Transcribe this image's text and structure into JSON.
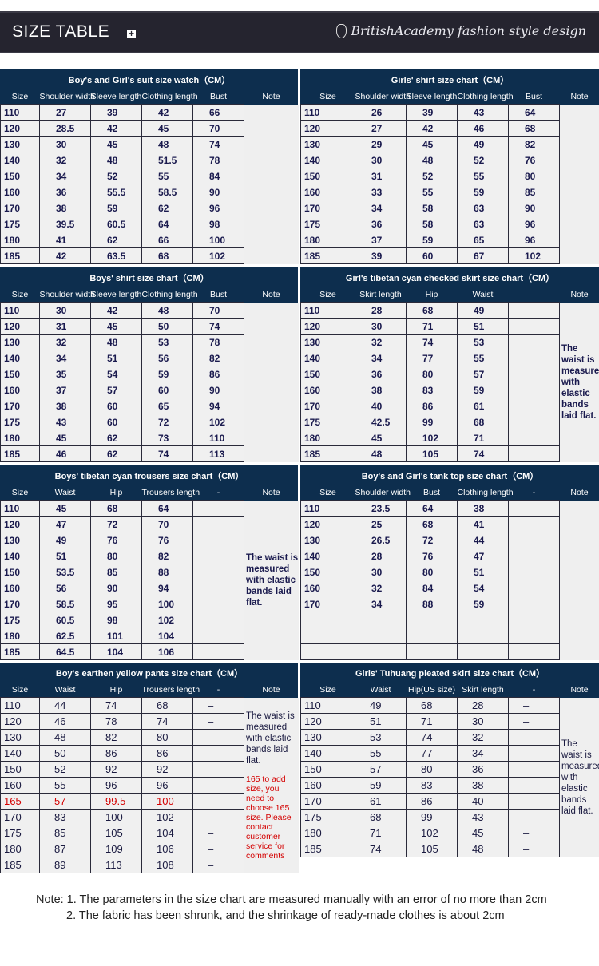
{
  "banner": {
    "title": "SIZE TABLE",
    "plus_icon": "plus-square-icon",
    "brand": "BritishAcademy fashion style design",
    "crest_icon": "crest-icon"
  },
  "colors": {
    "header_bg": "#0d2e4e",
    "cell_bg": "#f0f0f0",
    "text": "#1a1a4e",
    "highlight": "#d40000",
    "banner_bg": "#25242f"
  },
  "tables": [
    {
      "title": "Boy's and Girl's suit size watch（CM）",
      "headers": [
        "Size",
        "Shoulder width",
        "Sleeve length",
        "Clothing length",
        "Bust",
        "Note"
      ],
      "rows": [
        [
          "110",
          "27",
          "39",
          "42",
          "66"
        ],
        [
          "120",
          "28.5",
          "42",
          "45",
          "70"
        ],
        [
          "130",
          "30",
          "45",
          "48",
          "74"
        ],
        [
          "140",
          "32",
          "48",
          "51.5",
          "78"
        ],
        [
          "150",
          "34",
          "52",
          "55",
          "84"
        ],
        [
          "160",
          "36",
          "55.5",
          "58.5",
          "90"
        ],
        [
          "170",
          "38",
          "59",
          "62",
          "96"
        ],
        [
          "175",
          "39.5",
          "60.5",
          "64",
          "98"
        ],
        [
          "180",
          "41",
          "62",
          "66",
          "100"
        ],
        [
          "185",
          "42",
          "63.5",
          "68",
          "102"
        ]
      ],
      "note": ""
    },
    {
      "title": "Girls' shirt size chart（CM）",
      "headers": [
        "Size",
        "Shoulder width",
        "Sleeve length",
        "Clothing length",
        "Bust",
        "Note"
      ],
      "rows": [
        [
          "110",
          "26",
          "39",
          "43",
          "64"
        ],
        [
          "120",
          "27",
          "42",
          "46",
          "68"
        ],
        [
          "130",
          "29",
          "45",
          "49",
          "82"
        ],
        [
          "140",
          "30",
          "48",
          "52",
          "76"
        ],
        [
          "150",
          "31",
          "52",
          "55",
          "80"
        ],
        [
          "160",
          "33",
          "55",
          "59",
          "85"
        ],
        [
          "170",
          "34",
          "58",
          "63",
          "90"
        ],
        [
          "175",
          "36",
          "58",
          "63",
          "96"
        ],
        [
          "180",
          "37",
          "59",
          "65",
          "96"
        ],
        [
          "185",
          "39",
          "60",
          "67",
          "102"
        ]
      ],
      "note": ""
    },
    {
      "title": "Boys' shirt size chart（CM）",
      "headers": [
        "Size",
        "Shoulder width",
        "Sleeve length",
        "Clothing length",
        "Bust",
        "Note"
      ],
      "rows": [
        [
          "110",
          "30",
          "42",
          "48",
          "70"
        ],
        [
          "120",
          "31",
          "45",
          "50",
          "74"
        ],
        [
          "130",
          "32",
          "48",
          "53",
          "78"
        ],
        [
          "140",
          "34",
          "51",
          "56",
          "82"
        ],
        [
          "150",
          "35",
          "54",
          "59",
          "86"
        ],
        [
          "160",
          "37",
          "57",
          "60",
          "90"
        ],
        [
          "170",
          "38",
          "60",
          "65",
          "94"
        ],
        [
          "175",
          "43",
          "60",
          "72",
          "102"
        ],
        [
          "180",
          "45",
          "62",
          "73",
          "110"
        ],
        [
          "185",
          "46",
          "62",
          "74",
          "113"
        ]
      ],
      "note": ""
    },
    {
      "title": "Girl's tibetan cyan checked skirt size chart（CM）",
      "headers": [
        "Size",
        "Skirt length",
        "Hip",
        "Waist",
        "",
        "Note"
      ],
      "rows": [
        [
          "110",
          "28",
          "68",
          "49",
          ""
        ],
        [
          "120",
          "30",
          "71",
          "51",
          ""
        ],
        [
          "130",
          "32",
          "74",
          "53",
          ""
        ],
        [
          "140",
          "34",
          "77",
          "55",
          ""
        ],
        [
          "150",
          "36",
          "80",
          "57",
          ""
        ],
        [
          "160",
          "38",
          "83",
          "59",
          ""
        ],
        [
          "170",
          "40",
          "86",
          "61",
          ""
        ],
        [
          "175",
          "42.5",
          "99",
          "68",
          ""
        ],
        [
          "180",
          "45",
          "102",
          "71",
          ""
        ],
        [
          "185",
          "48",
          "105",
          "74",
          ""
        ]
      ],
      "note": "The waist is measured with elastic bands laid flat."
    },
    {
      "title": "Boys' tibetan cyan trousers size chart（CM）",
      "headers": [
        "Size",
        "Waist",
        "Hip",
        "Trousers length",
        "-",
        "Note"
      ],
      "rows": [
        [
          "110",
          "45",
          "68",
          "64",
          ""
        ],
        [
          "120",
          "47",
          "72",
          "70",
          ""
        ],
        [
          "130",
          "49",
          "76",
          "76",
          ""
        ],
        [
          "140",
          "51",
          "80",
          "82",
          ""
        ],
        [
          "150",
          "53.5",
          "85",
          "88",
          ""
        ],
        [
          "160",
          "56",
          "90",
          "94",
          ""
        ],
        [
          "170",
          "58.5",
          "95",
          "100",
          ""
        ],
        [
          "175",
          "60.5",
          "98",
          "102",
          ""
        ],
        [
          "180",
          "62.5",
          "101",
          "104",
          ""
        ],
        [
          "185",
          "64.5",
          "104",
          "106",
          ""
        ]
      ],
      "note": "The waist is measured with elastic bands laid flat."
    },
    {
      "title": "Boy's and Girl's tank top size chart（CM）",
      "headers": [
        "Size",
        "Shoulder width",
        "Bust",
        "Clothing length",
        "-",
        "Note"
      ],
      "rows": [
        [
          "110",
          "23.5",
          "64",
          "38",
          ""
        ],
        [
          "120",
          "25",
          "68",
          "41",
          ""
        ],
        [
          "130",
          "26.5",
          "72",
          "44",
          ""
        ],
        [
          "140",
          "28",
          "76",
          "47",
          ""
        ],
        [
          "150",
          "30",
          "80",
          "51",
          ""
        ],
        [
          "160",
          "32",
          "84",
          "54",
          ""
        ],
        [
          "170",
          "34",
          "88",
          "59",
          ""
        ],
        [
          "",
          "",
          "",
          "",
          ""
        ],
        [
          "",
          "",
          "",
          "",
          ""
        ],
        [
          "",
          "",
          "",
          "",
          ""
        ]
      ],
      "note": ""
    },
    {
      "title": "Boy's earthen yellow pants size chart（CM）",
      "headers": [
        "Size",
        "Waist",
        "Hip",
        "Trousers length",
        "-",
        "Note"
      ],
      "rows": [
        [
          "110",
          "44",
          "74",
          "68",
          "–"
        ],
        [
          "120",
          "46",
          "78",
          "74",
          "–"
        ],
        [
          "130",
          "48",
          "82",
          "80",
          "–"
        ],
        [
          "140",
          "50",
          "86",
          "86",
          "–"
        ],
        [
          "150",
          "52",
          "92",
          "92",
          "–"
        ],
        [
          "160",
          "55",
          "96",
          "96",
          "–"
        ],
        [
          "165",
          "57",
          "99.5",
          "100",
          "–"
        ],
        [
          "170",
          "83",
          "100",
          "102",
          "–"
        ],
        [
          "175",
          "85",
          "105",
          "104",
          "–"
        ],
        [
          "180",
          "87",
          "109",
          "106",
          "–"
        ],
        [
          "185",
          "89",
          "113",
          "108",
          "–"
        ]
      ],
      "highlight_row": 6,
      "note": "The waist is measured with elastic bands laid flat.",
      "note_red": "165 to add size, you need to choose 165 size. Please contact customer service for comments"
    },
    {
      "title": "Girls' Tuhuang pleated skirt size chart（CM）",
      "headers": [
        "Size",
        "Waist",
        "Hip(US size)",
        "Skirt length",
        "-",
        "Note"
      ],
      "rows": [
        [
          "110",
          "49",
          "68",
          "28",
          "–"
        ],
        [
          "120",
          "51",
          "71",
          "30",
          "–"
        ],
        [
          "130",
          "53",
          "74",
          "32",
          "–"
        ],
        [
          "140",
          "55",
          "77",
          "34",
          "–"
        ],
        [
          "150",
          "57",
          "80",
          "36",
          "–"
        ],
        [
          "160",
          "59",
          "83",
          "38",
          "–"
        ],
        [
          "170",
          "61",
          "86",
          "40",
          "–"
        ],
        [
          "175",
          "68",
          "99",
          "43",
          "–"
        ],
        [
          "180",
          "71",
          "102",
          "45",
          "–"
        ],
        [
          "185",
          "74",
          "105",
          "48",
          "–"
        ]
      ],
      "note": "The waist is measured with elastic bands laid flat."
    }
  ],
  "footer": {
    "line1": "Note: 1. The parameters in the size chart are measured manually with an error of no more than 2cm",
    "line2": "2. The fabric has been shrunk, and the shrinkage of ready-made clothes is about 2cm"
  }
}
